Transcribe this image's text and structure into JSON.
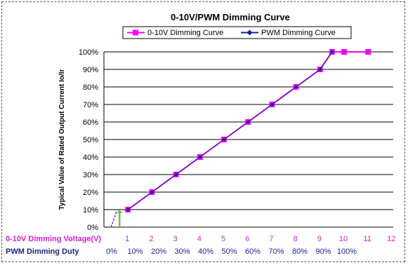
{
  "chart_data": {
    "type": "line",
    "title": "0-10V/PWM Dimming Curve",
    "ylabel": "Typical Value of Rated Output Current Io/Ir",
    "xlabel_voltage": "0-10V Dimming Voltage(V)",
    "xlabel_duty": "PWM Dimming Duty",
    "xlim": [
      0,
      12
    ],
    "ylim": [
      0,
      100
    ],
    "y_ticks": [
      "0%",
      "10%",
      "20%",
      "30%",
      "40%",
      "50%",
      "60%",
      "70%",
      "80%",
      "90%",
      "100%"
    ],
    "voltage_ticks": [
      "1",
      "2",
      "3",
      "4",
      "5",
      "6",
      "7",
      "8",
      "9",
      "10",
      "11",
      "12"
    ],
    "duty_ticks": [
      "0%",
      "10%",
      "20%",
      "30%",
      "40%",
      "50%",
      "60%",
      "70%",
      "80%",
      "90%",
      "100%"
    ],
    "grid": "horizontal",
    "legend_position": "top",
    "series": [
      {
        "name": "0-10V Dimming Curve",
        "color": "#ff00ff",
        "marker": "square",
        "x": [
          1,
          2,
          3,
          4,
          5,
          6,
          7,
          8,
          9,
          9.5,
          10,
          11
        ],
        "y": [
          10,
          20,
          30,
          40,
          50,
          60,
          70,
          80,
          90,
          100,
          100,
          100
        ]
      },
      {
        "name": "PWM Dimming Curve",
        "color": "#1b1f8f",
        "marker": "diamond",
        "x": [
          1,
          2,
          3,
          4,
          5,
          6,
          7,
          8,
          9,
          9.5
        ],
        "y": [
          10,
          20,
          30,
          40,
          50,
          60,
          70,
          80,
          90,
          100
        ]
      }
    ],
    "annotations": [
      {
        "type": "dashed",
        "color": "#7030a0",
        "x": [
          0.3,
          0.55
        ],
        "y": [
          0,
          10
        ]
      },
      {
        "type": "arrow-up",
        "color": "#7fba4f",
        "x": 0.65,
        "y": [
          0,
          10
        ]
      }
    ]
  }
}
